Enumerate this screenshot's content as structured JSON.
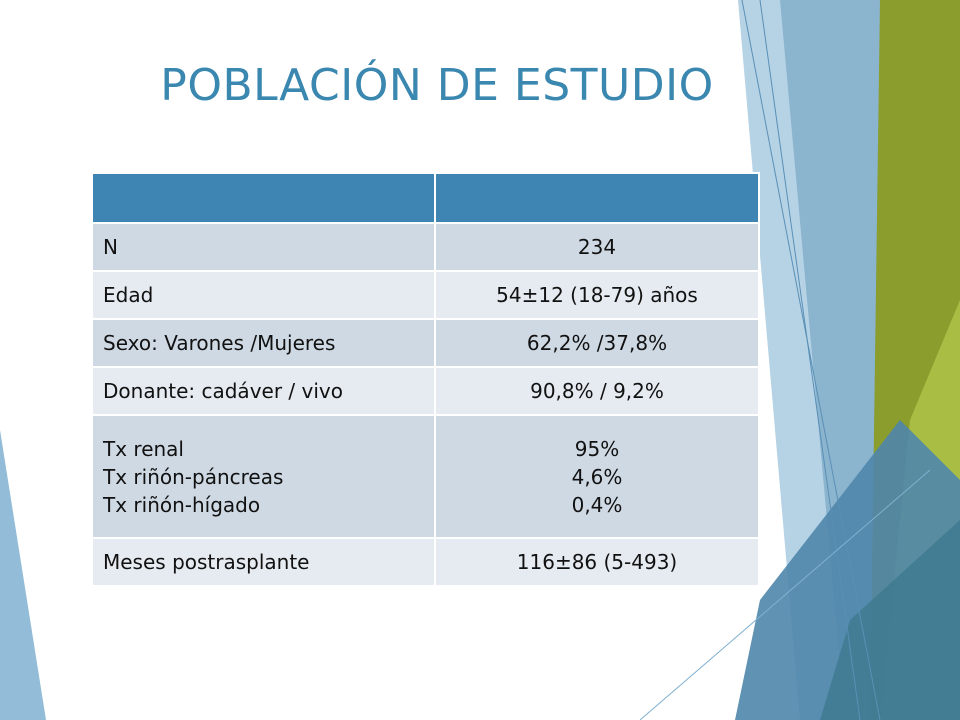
{
  "slide": {
    "title": "POBLACIÓN DE ESTUDIO"
  },
  "colors": {
    "title": "#3a87b0",
    "header_fill": "#3e85b4",
    "row_dark": "#cfd9e4",
    "row_light": "#e6ebf1",
    "accent_green": "#8a9d2d",
    "accent_blue": "#5a91b8"
  },
  "table": {
    "header": [
      "",
      ""
    ],
    "rows": [
      {
        "label": "N",
        "value": "234"
      },
      {
        "label": "Edad",
        "value": "54±12 (18-79) años"
      },
      {
        "label": "Sexo: Varones /Mujeres",
        "value": "62,2% /37,8%"
      },
      {
        "label": "Donante: cadáver / vivo",
        "value": "90,8% / 9,2%"
      },
      {
        "labels": [
          "Tx renal",
          "Tx riñón-páncreas",
          "Tx riñón-hígado"
        ],
        "values": [
          "95%",
          "4,6%",
          "0,4%"
        ]
      },
      {
        "label": "Meses postrasplante",
        "value": "116±86 (5-493)"
      }
    ]
  }
}
